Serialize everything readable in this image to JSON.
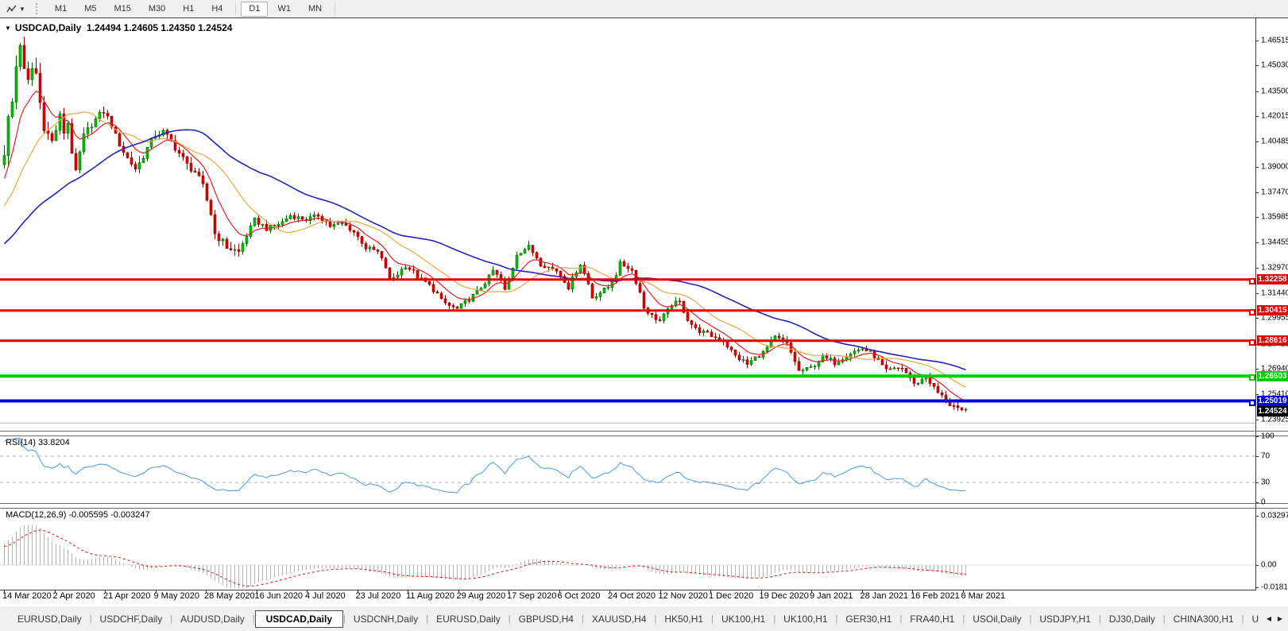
{
  "toolbar": {
    "timeframes": [
      "M1",
      "M5",
      "M15",
      "M30",
      "H1",
      "H4",
      "D1",
      "W1",
      "MN"
    ],
    "active_timeframe": "D1"
  },
  "title": {
    "symbol": "USDCAD,Daily",
    "ohlc": "1.24494 1.24605 1.24350 1.24524",
    "collapse_glyph": "▼"
  },
  "indicators": {
    "rsi": {
      "label": "RSI(14) 33.8204",
      "axis_ticks": [
        100,
        70,
        30,
        0
      ],
      "dashed_levels": [
        70,
        30
      ],
      "line_color": "#56a2d8"
    },
    "macd": {
      "label": "MACD(12,26,9) -0.005595 -0.003247",
      "axis_ticks": [
        {
          "label": "0.032972",
          "value": 0.032972
        },
        {
          "label": "0.00",
          "value": 0
        },
        {
          "label": "-0.018154",
          "value": -0.018154
        }
      ],
      "histogram_color": "#b4b4b4",
      "signal_color": "#e01010"
    }
  },
  "price_axis": {
    "ticks": [
      "1.46515",
      "1.45030",
      "1.43500",
      "1.42015",
      "1.40485",
      "1.39000",
      "1.37470",
      "1.35985",
      "1.34455",
      "1.32970",
      "1.31440",
      "1.29955",
      "1.28425",
      "1.26940",
      "1.25410",
      "1.23925"
    ]
  },
  "time_axis": {
    "labels": [
      "14 Mar 2020",
      "2 Apr 2020",
      "21 Apr 2020",
      "9 May 2020",
      "28 May 2020",
      "16 Jun 2020",
      "4 Jul 2020",
      "23 Jul 2020",
      "11 Aug 2020",
      "29 Aug 2020",
      "17 Sep 2020",
      "6 Oct 2020",
      "24 Oct 2020",
      "12 Nov 2020",
      "1 Dec 2020",
      "19 Dec 2020",
      "9 Jan 2021",
      "28 Jan 2021",
      "16 Feb 2021",
      "6 Mar 2021"
    ]
  },
  "levels": [
    {
      "label": "1.32258",
      "value": 1.32258,
      "color": "#e60000",
      "width": 3,
      "badge": true
    },
    {
      "label": "1.30415",
      "value": 1.30415,
      "color": "#e60000",
      "width": 3,
      "badge": true
    },
    {
      "label": "1.28616",
      "value": 1.28616,
      "color": "#e60000",
      "width": 3,
      "badge": true
    },
    {
      "label": "1.26503",
      "value": 1.26503,
      "color": "#00cc00",
      "width": 4,
      "badge": true
    },
    {
      "label": "1.25019",
      "value": 1.25019,
      "color": "#0000dd",
      "width": 4,
      "badge": true
    },
    {
      "label": "",
      "value": 1.237,
      "color": "#b4b4b4",
      "width": 1,
      "badge": false
    }
  ],
  "current_price": {
    "label": "1.24524",
    "value": 1.24524,
    "badge_color": "#000000"
  },
  "tabs": {
    "items": [
      "EURUSD,Daily",
      "USDCHF,Daily",
      "AUDUSD,Daily",
      "USDCAD,Daily",
      "USDCNH,Daily",
      "EURUSD,Daily",
      "GBPUSD,H4",
      "XAUUSD,H4",
      "HK50,H1",
      "UK100,H1",
      "UK100,H1",
      "GER30,H1",
      "FRA40,H1",
      "USOil,Daily",
      "USDJPY,H1",
      "DJ30,Daily",
      "CHINA300,H1",
      "USOil,"
    ],
    "active_index": 3,
    "scroll_left_glyph": "◀",
    "scroll_right_glyph": "▶"
  },
  "chart_data": {
    "type": "candlestick",
    "symbol": "USDCAD",
    "timeframe": "Daily",
    "last_ohlc": {
      "open": 1.24494,
      "high": 1.24605,
      "low": 1.2435,
      "close": 1.24524
    },
    "visible_bars": 243,
    "price_range": {
      "top": 1.478,
      "bottom": 1.2329
    },
    "up_color": "#00c400",
    "down_color": "#e00000",
    "moving_averages": [
      {
        "name": "fast",
        "type": "ema",
        "period": 9,
        "color": "#e02020"
      },
      {
        "name": "mid",
        "type": "sma",
        "period": 20,
        "color": "#efa53a"
      },
      {
        "name": "slow",
        "type": "sma",
        "period": 48,
        "color": "#2424bb"
      }
    ],
    "pre_anchors": [
      [
        -60,
        1.303
      ],
      [
        -45,
        1.316
      ],
      [
        -30,
        1.333
      ],
      [
        -18,
        1.344
      ],
      [
        -10,
        1.362
      ],
      [
        -5,
        1.376
      ],
      [
        -1,
        1.393
      ]
    ],
    "close_anchors": [
      [
        0,
        1.399
      ],
      [
        1,
        1.418
      ],
      [
        2,
        1.428
      ],
      [
        3,
        1.45
      ],
      [
        4,
        1.464
      ],
      [
        5,
        1.446
      ],
      [
        6,
        1.44
      ],
      [
        7,
        1.4485
      ],
      [
        8,
        1.4455
      ],
      [
        9,
        1.428
      ],
      [
        10,
        1.415
      ],
      [
        11,
        1.409
      ],
      [
        12,
        1.405
      ],
      [
        13,
        1.412
      ],
      [
        14,
        1.42
      ],
      [
        15,
        1.4105
      ],
      [
        16,
        1.416
      ],
      [
        17,
        1.399
      ],
      [
        18,
        1.386
      ],
      [
        19,
        1.398
      ],
      [
        20,
        1.408
      ],
      [
        22,
        1.4155
      ],
      [
        25,
        1.423
      ],
      [
        27,
        1.415
      ],
      [
        28,
        1.408
      ],
      [
        30,
        1.399
      ],
      [
        31,
        1.395
      ],
      [
        33,
        1.389
      ],
      [
        34,
        1.392
      ],
      [
        36,
        1.401
      ],
      [
        38,
        1.409
      ],
      [
        40,
        1.4105
      ],
      [
        42,
        1.405
      ],
      [
        44,
        1.398
      ],
      [
        46,
        1.391
      ],
      [
        48,
        1.387
      ],
      [
        50,
        1.378
      ],
      [
        52,
        1.362
      ],
      [
        53,
        1.35
      ],
      [
        55,
        1.345
      ],
      [
        56,
        1.342
      ],
      [
        58,
        1.34
      ],
      [
        59,
        1.339
      ],
      [
        61,
        1.349
      ],
      [
        63,
        1.358
      ],
      [
        65,
        1.355
      ],
      [
        66,
        1.353
      ],
      [
        68,
        1.3545
      ],
      [
        70,
        1.357
      ],
      [
        72,
        1.361
      ],
      [
        74,
        1.3595
      ],
      [
        76,
        1.3585
      ],
      [
        78,
        1.36
      ],
      [
        79,
        1.361
      ],
      [
        81,
        1.357
      ],
      [
        82,
        1.3545
      ],
      [
        84,
        1.3555
      ],
      [
        85,
        1.356
      ],
      [
        87,
        1.353
      ],
      [
        88,
        1.351
      ],
      [
        90,
        1.345
      ],
      [
        91,
        1.3415
      ],
      [
        93,
        1.34
      ],
      [
        94,
        1.339
      ],
      [
        96,
        1.33
      ],
      [
        97,
        1.322
      ],
      [
        99,
        1.326
      ],
      [
        101,
        1.331
      ],
      [
        103,
        1.327
      ],
      [
        104,
        1.324
      ],
      [
        106,
        1.321
      ],
      [
        107,
        1.319
      ],
      [
        109,
        1.314
      ],
      [
        110,
        1.31
      ],
      [
        112,
        1.307
      ],
      [
        114,
        1.305
      ],
      [
        116,
        1.309
      ],
      [
        117,
        1.311
      ],
      [
        119,
        1.315
      ],
      [
        120,
        1.318
      ],
      [
        122,
        1.324
      ],
      [
        123,
        1.328
      ],
      [
        125,
        1.322
      ],
      [
        126,
        1.316
      ],
      [
        128,
        1.33
      ],
      [
        129,
        1.338
      ],
      [
        131,
        1.341
      ],
      [
        132,
        1.342
      ],
      [
        134,
        1.336
      ],
      [
        135,
        1.332
      ],
      [
        137,
        1.33
      ],
      [
        139,
        1.328
      ],
      [
        141,
        1.322
      ],
      [
        142,
        1.318
      ],
      [
        144,
        1.328
      ],
      [
        145,
        1.332
      ],
      [
        147,
        1.32
      ],
      [
        148,
        1.312
      ],
      [
        150,
        1.315
      ],
      [
        152,
        1.318
      ],
      [
        154,
        1.326
      ],
      [
        155,
        1.332
      ],
      [
        157,
        1.33
      ],
      [
        158,
        1.328
      ],
      [
        160,
        1.315
      ],
      [
        161,
        1.306
      ],
      [
        163,
        1.301
      ],
      [
        165,
        1.298
      ],
      [
        167,
        1.304
      ],
      [
        168,
        1.308
      ],
      [
        170,
        1.309
      ],
      [
        172,
        1.299
      ],
      [
        174,
        1.293
      ],
      [
        176,
        1.291
      ],
      [
        178,
        1.289
      ],
      [
        180,
        1.287
      ],
      [
        181,
        1.286
      ],
      [
        183,
        1.28
      ],
      [
        184,
        1.277
      ],
      [
        186,
        1.274
      ],
      [
        187,
        1.272
      ],
      [
        189,
        1.276
      ],
      [
        191,
        1.279
      ],
      [
        193,
        1.285
      ],
      [
        194,
        1.288
      ],
      [
        196,
        1.286
      ],
      [
        197,
        1.284
      ],
      [
        199,
        1.274
      ],
      [
        200,
        1.268
      ],
      [
        202,
        1.269
      ],
      [
        203,
        1.27
      ],
      [
        205,
        1.274
      ],
      [
        206,
        1.276
      ],
      [
        208,
        1.2745
      ],
      [
        209,
        1.273
      ],
      [
        211,
        1.276
      ],
      [
        213,
        1.279
      ],
      [
        215,
        1.2805
      ],
      [
        216,
        1.2815
      ],
      [
        218,
        1.279
      ],
      [
        219,
        1.277
      ],
      [
        221,
        1.271
      ],
      [
        222,
        1.268
      ],
      [
        224,
        1.269
      ],
      [
        226,
        1.27
      ],
      [
        228,
        1.264
      ],
      [
        229,
        1.26
      ],
      [
        231,
        1.263
      ],
      [
        232,
        1.265
      ],
      [
        234,
        1.258
      ],
      [
        235,
        1.255
      ],
      [
        237,
        1.251
      ],
      [
        238,
        1.248
      ],
      [
        240,
        1.2462
      ],
      [
        242,
        1.24524
      ]
    ]
  }
}
